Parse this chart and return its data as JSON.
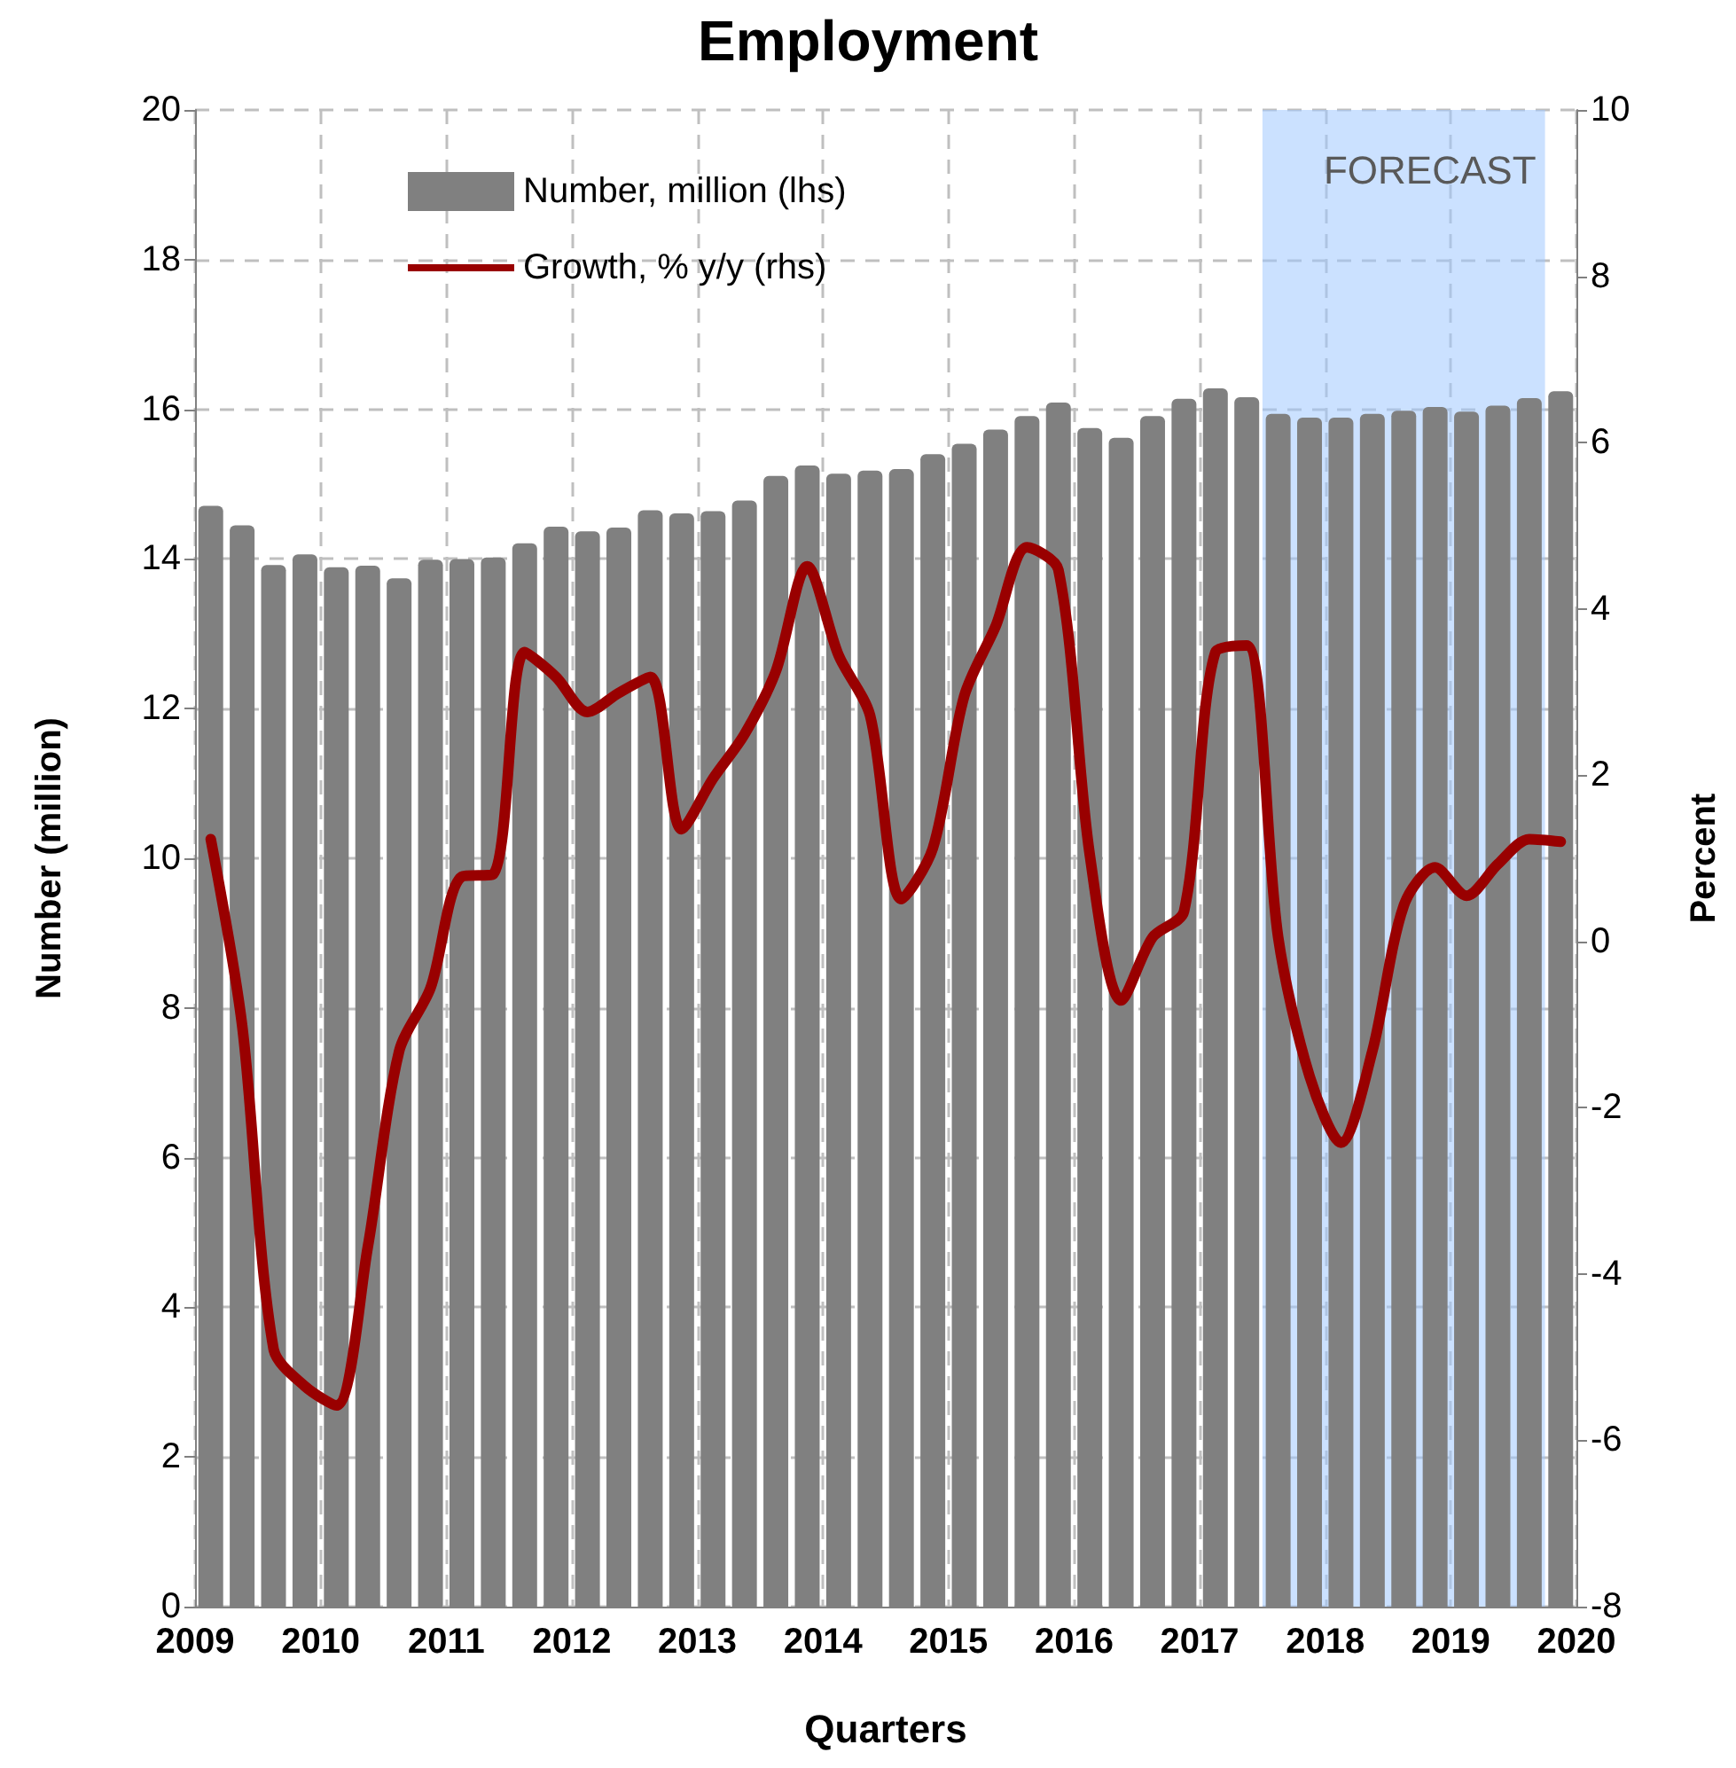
{
  "chart_data": {
    "type": "bar",
    "title": "Employment",
    "xlabel": "Quarters",
    "ylabel": "Number (million)",
    "y2label": "Percent",
    "x": [
      2009.125,
      2009.375,
      2009.625,
      2009.875,
      2010.125,
      2010.375,
      2010.625,
      2010.875,
      2011.125,
      2011.375,
      2011.625,
      2011.875,
      2012.125,
      2012.375,
      2012.625,
      2012.875,
      2013.125,
      2013.375,
      2013.625,
      2013.875,
      2014.125,
      2014.375,
      2014.625,
      2014.875,
      2015.125,
      2015.375,
      2015.625,
      2015.875,
      2016.125,
      2016.375,
      2016.625,
      2016.875,
      2017.125,
      2017.375,
      2017.625,
      2017.875,
      2018.125,
      2018.375,
      2018.625,
      2018.875,
      2019.125,
      2019.375,
      2019.625,
      2019.875
    ],
    "xlim": [
      2009,
      2020
    ],
    "xticks": [
      2009,
      2010,
      2011,
      2012,
      2013,
      2014,
      2015,
      2016,
      2017,
      2018,
      2019,
      2020
    ],
    "ylim": [
      0,
      20
    ],
    "yticks": [
      0,
      2,
      4,
      6,
      8,
      10,
      12,
      14,
      16,
      18,
      20
    ],
    "y2lim": [
      -8,
      10
    ],
    "y2ticks": [
      -8,
      -6,
      -4,
      -2,
      0,
      2,
      4,
      6,
      8,
      10
    ],
    "series": [
      {
        "name": "Number, million (lhs)",
        "color": "#808080",
        "values": [
          14.71,
          14.45,
          13.92,
          14.06,
          13.89,
          13.91,
          13.74,
          13.99,
          14.0,
          14.02,
          14.21,
          14.43,
          14.37,
          14.42,
          14.65,
          14.61,
          14.64,
          14.78,
          15.11,
          15.25,
          15.14,
          15.18,
          15.2,
          15.4,
          15.54,
          15.73,
          15.91,
          16.09,
          15.75,
          15.62,
          15.91,
          16.14,
          16.28,
          16.16,
          15.94,
          15.89,
          15.89,
          15.94,
          15.98,
          16.03,
          15.97,
          16.05,
          16.15,
          16.24
        ]
      },
      {
        "name": "Growth, % y/y (rhs)",
        "type": "line",
        "axis": "y2",
        "color": "#990000",
        "values": [
          1.23,
          -1.01,
          -4.9,
          -5.35,
          -5.58,
          -3.68,
          -1.32,
          -0.56,
          0.78,
          0.81,
          3.48,
          3.18,
          2.76,
          2.99,
          3.18,
          1.35,
          1.96,
          2.49,
          3.25,
          4.51,
          3.44,
          2.72,
          0.51,
          1.12,
          2.95,
          3.79,
          4.74,
          4.47,
          1.04,
          -0.71,
          0.05,
          0.36,
          3.48,
          3.56,
          0.05,
          -1.62,
          -2.42,
          -1.32,
          0.43,
          0.89,
          0.55,
          0.93,
          1.23,
          1.2
        ]
      }
    ],
    "bands": [
      {
        "axis": "x",
        "from": 2017.5,
        "to": 2019.75,
        "label": "FORECAST",
        "color": "#a0c8ff"
      }
    ],
    "grid": true,
    "legend": "top left",
    "marker": "none",
    "line_style": "solid"
  }
}
